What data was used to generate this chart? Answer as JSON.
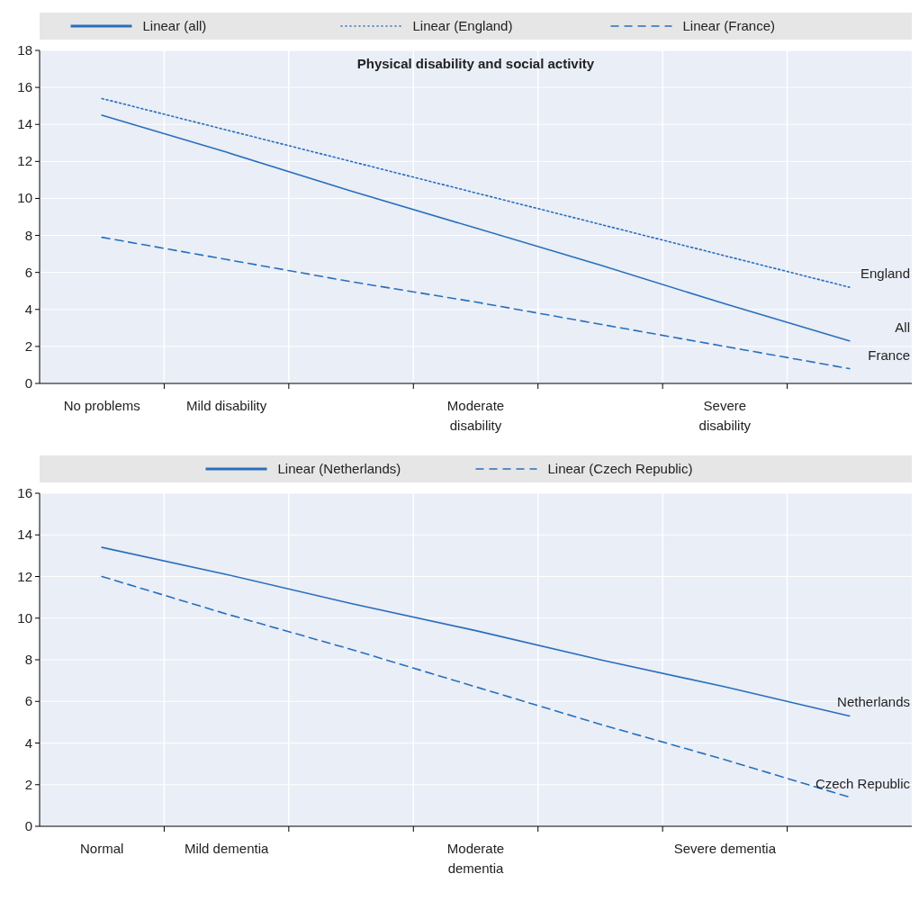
{
  "chart_data": [
    {
      "type": "line",
      "title": "Physical disability and social activity",
      "categories": [
        "No problems",
        "Mild disability",
        null,
        "Moderate disability",
        null,
        "Severe disability",
        null
      ],
      "series": [
        {
          "name": "Linear (all)",
          "color": "#2a6ebb",
          "line_style": "solid",
          "values": [
            14.5,
            12.5,
            10.4,
            8.4,
            6.4,
            4.3,
            2.3
          ]
        },
        {
          "name": "Linear (England)",
          "color": "#2a6ebb",
          "line_style": "dotted",
          "values": [
            15.4,
            13.7,
            12.0,
            10.3,
            8.6,
            6.9,
            5.2
          ]
        },
        {
          "name": "Linear (France)",
          "color": "#2a6ebb",
          "line_style": "dashed",
          "values": [
            7.9,
            6.7,
            5.5,
            4.4,
            3.2,
            2.0,
            0.8
          ]
        }
      ],
      "ylim": [
        0,
        18
      ],
      "yticks": [
        0,
        2,
        4,
        6,
        8,
        10,
        12,
        14,
        16,
        18
      ],
      "grid": true,
      "legend": "top",
      "marker": "none",
      "annotations": [
        "All",
        "England",
        "France"
      ]
    },
    {
      "type": "line",
      "categories": [
        "Normal",
        "Mild dementia",
        null,
        "Moderate dementia",
        null,
        "Severe dementia",
        null
      ],
      "series": [
        {
          "name": "Linear (Netherlands)",
          "color": "#2a6ebb",
          "line_style": "solid",
          "values": [
            13.4,
            12.1,
            10.7,
            9.4,
            8.0,
            6.7,
            5.3
          ]
        },
        {
          "name": "Linear (Czech Republic)",
          "color": "#2a6ebb",
          "line_style": "dashed",
          "values": [
            12.0,
            10.2,
            8.5,
            6.7,
            4.9,
            3.2,
            1.4
          ]
        }
      ],
      "ylim": [
        0,
        16
      ],
      "yticks": [
        0,
        2,
        4,
        6,
        8,
        10,
        12,
        14,
        16
      ],
      "grid": true,
      "legend": "top",
      "marker": "none",
      "annotations": [
        "Netherlands",
        "Czech Republic"
      ]
    }
  ]
}
